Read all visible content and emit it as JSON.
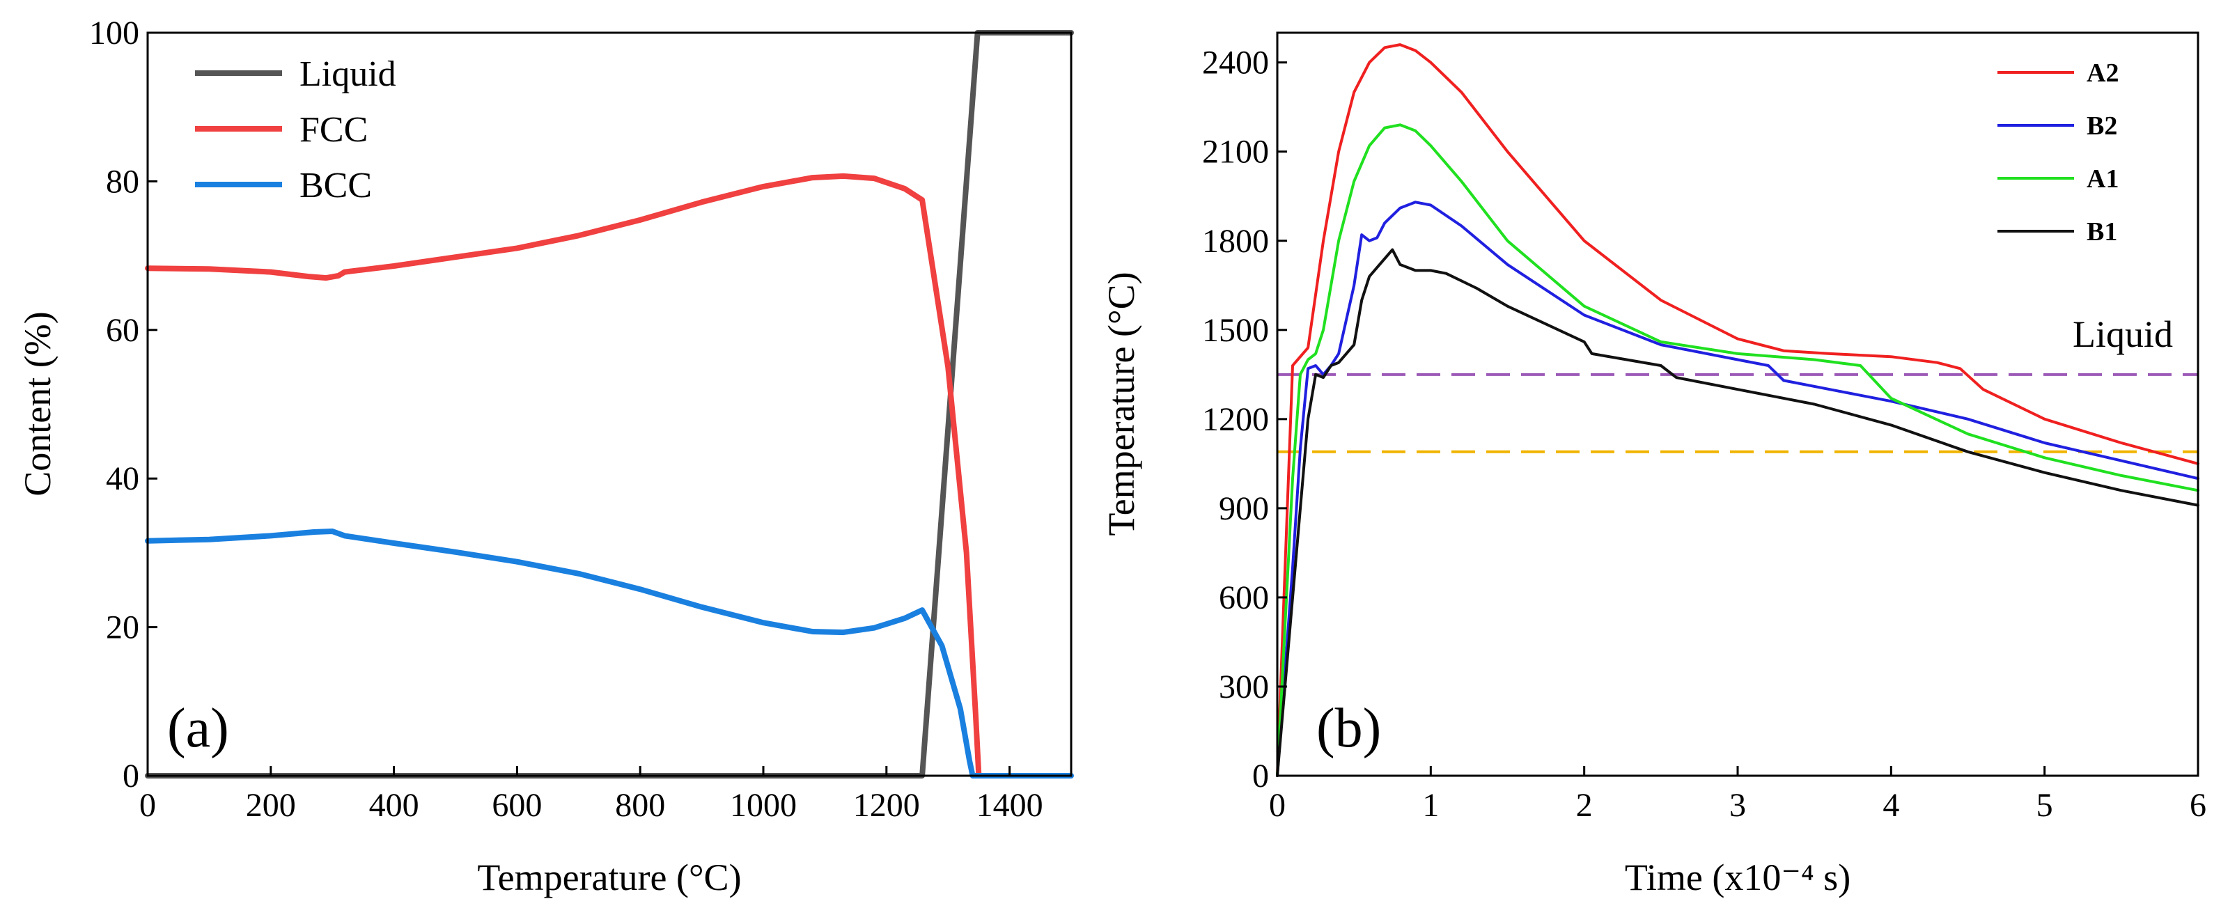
{
  "chart_data": [
    {
      "type": "line",
      "panel_label": "(a)",
      "xlabel": "Temperature (°C)",
      "ylabel": "Content (%)",
      "xlim": [
        0,
        1500
      ],
      "ylim": [
        0,
        100
      ],
      "xticks": [
        0,
        200,
        400,
        600,
        800,
        1000,
        1200,
        1400
      ],
      "yticks": [
        0,
        20,
        40,
        60,
        80,
        100
      ],
      "legend_position": "top-left",
      "series": [
        {
          "name": "Liquid",
          "color": "#555555",
          "x": [
            0,
            1258,
            1348,
            1500
          ],
          "y": [
            0,
            0,
            100,
            100
          ]
        },
        {
          "name": "FCC",
          "color": "#f04040",
          "x": [
            0,
            100,
            200,
            260,
            290,
            310,
            320,
            400,
            500,
            600,
            700,
            800,
            900,
            1000,
            1080,
            1130,
            1180,
            1230,
            1258,
            1300,
            1330,
            1345,
            1350
          ],
          "y": [
            68.3,
            68.2,
            67.8,
            67.2,
            67.0,
            67.3,
            67.8,
            68.6,
            69.8,
            71.0,
            72.7,
            74.8,
            77.2,
            79.3,
            80.5,
            80.7,
            80.4,
            79.0,
            77.5,
            55.0,
            30.0,
            8.0,
            0
          ]
        },
        {
          "name": "BCC",
          "color": "#1a80e0",
          "x": [
            0,
            100,
            200,
            270,
            300,
            320,
            400,
            500,
            600,
            700,
            800,
            900,
            1000,
            1080,
            1130,
            1180,
            1230,
            1258,
            1290,
            1320,
            1335,
            1340,
            1500
          ],
          "y": [
            31.6,
            31.8,
            32.3,
            32.8,
            32.9,
            32.3,
            31.3,
            30.1,
            28.8,
            27.2,
            25.1,
            22.7,
            20.6,
            19.4,
            19.3,
            19.9,
            21.2,
            22.3,
            17.5,
            9.0,
            2.0,
            0,
            0
          ]
        }
      ]
    },
    {
      "type": "line",
      "panel_label": "(b)",
      "xlabel": "Time (x10⁻⁴ s)",
      "ylabel": "Temperature (°C)",
      "xlim": [
        0,
        6
      ],
      "ylim": [
        0,
        2500
      ],
      "xticks": [
        0,
        1,
        2,
        3,
        4,
        5,
        6
      ],
      "yticks": [
        0,
        300,
        600,
        900,
        1200,
        1500,
        1800,
        2100,
        2400
      ],
      "legend_position": "top-right",
      "annotation": "Liquid",
      "reference_lines": [
        {
          "y": 1350,
          "color": "#9b59b6",
          "style": "dashed"
        },
        {
          "y": 1090,
          "color": "#f0b400",
          "style": "dashed"
        }
      ],
      "series": [
        {
          "name": "A2",
          "color": "#f02020",
          "x": [
            0,
            0.1,
            0.15,
            0.2,
            0.3,
            0.4,
            0.5,
            0.6,
            0.7,
            0.8,
            0.9,
            1.0,
            1.2,
            1.5,
            2.0,
            2.5,
            3.0,
            3.3,
            3.6,
            4.0,
            4.3,
            4.45,
            4.6,
            5.0,
            5.5,
            6.0
          ],
          "y": [
            0,
            1380,
            1410,
            1440,
            1800,
            2100,
            2300,
            2400,
            2450,
            2460,
            2440,
            2400,
            2300,
            2100,
            1800,
            1600,
            1470,
            1430,
            1420,
            1410,
            1390,
            1370,
            1300,
            1200,
            1120,
            1050
          ]
        },
        {
          "name": "B2",
          "color": "#2020e0",
          "x": [
            0,
            0.1,
            0.15,
            0.2,
            0.25,
            0.3,
            0.35,
            0.4,
            0.5,
            0.55,
            0.6,
            0.65,
            0.7,
            0.8,
            0.9,
            1.0,
            1.2,
            1.5,
            2.0,
            2.5,
            3.0,
            3.2,
            3.3,
            3.6,
            4.0,
            4.5,
            5.0,
            5.5,
            6.0
          ],
          "y": [
            0,
            700,
            1100,
            1370,
            1380,
            1350,
            1380,
            1420,
            1650,
            1820,
            1800,
            1810,
            1860,
            1910,
            1930,
            1920,
            1850,
            1720,
            1550,
            1450,
            1400,
            1380,
            1330,
            1300,
            1260,
            1200,
            1120,
            1060,
            1000
          ]
        },
        {
          "name": "A1",
          "color": "#20e020",
          "x": [
            0,
            0.1,
            0.15,
            0.2,
            0.25,
            0.3,
            0.4,
            0.5,
            0.6,
            0.7,
            0.8,
            0.9,
            1.0,
            1.2,
            1.5,
            2.0,
            2.5,
            3.0,
            3.5,
            3.8,
            4.0,
            4.5,
            5.0,
            5.5,
            6.0
          ],
          "y": [
            0,
            1000,
            1350,
            1400,
            1420,
            1500,
            1800,
            2000,
            2120,
            2180,
            2190,
            2170,
            2120,
            2000,
            1800,
            1580,
            1460,
            1420,
            1400,
            1380,
            1270,
            1150,
            1070,
            1010,
            960
          ]
        },
        {
          "name": "B1",
          "color": "#111111",
          "x": [
            0,
            0.1,
            0.2,
            0.25,
            0.3,
            0.35,
            0.4,
            0.5,
            0.55,
            0.6,
            0.7,
            0.75,
            0.8,
            0.9,
            1.0,
            1.1,
            1.3,
            1.5,
            2.0,
            2.05,
            2.5,
            2.6,
            3.0,
            3.5,
            4.0,
            4.5,
            5.0,
            5.5,
            6.0
          ],
          "y": [
            0,
            600,
            1200,
            1350,
            1340,
            1380,
            1390,
            1450,
            1600,
            1680,
            1740,
            1770,
            1720,
            1700,
            1700,
            1690,
            1640,
            1580,
            1460,
            1420,
            1380,
            1340,
            1300,
            1250,
            1180,
            1090,
            1020,
            960,
            910
          ]
        }
      ]
    }
  ]
}
